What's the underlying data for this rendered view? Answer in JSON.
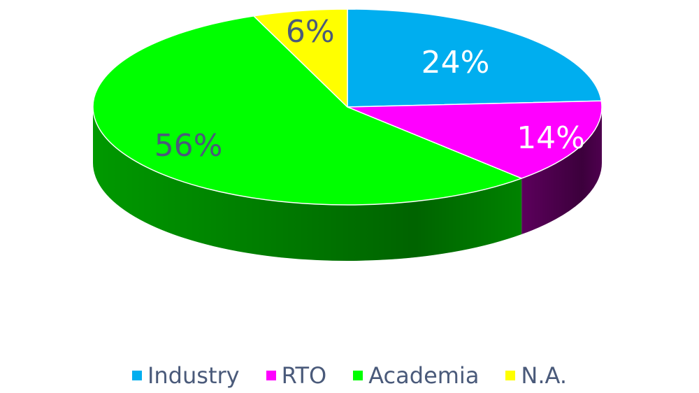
{
  "chart_data": {
    "type": "pie",
    "title": "",
    "legend_position": "bottom",
    "categories": [
      "Industry",
      "RTO",
      "Academia",
      "N.A."
    ],
    "values": [
      24,
      14,
      56,
      6
    ],
    "labels": [
      "24%",
      "14%",
      "56%",
      "6%"
    ],
    "colors": [
      "#00aeef",
      "#ff00ff",
      "#00ff00",
      "#ffff00"
    ],
    "side_colors": [
      "#0078a8",
      "#5c005c",
      "#009900",
      "#a8a800"
    ],
    "label_colors": [
      "#ffffff",
      "#ffffff",
      "#4a5a7a",
      "#4a5a7a"
    ],
    "legend": [
      {
        "label": "Industry",
        "color": "#00aeef"
      },
      {
        "label": "RTO",
        "color": "#ff00ff"
      },
      {
        "label": "Academia",
        "color": "#00ff00"
      },
      {
        "label": "N.A.",
        "color": "#ffff00"
      }
    ]
  }
}
